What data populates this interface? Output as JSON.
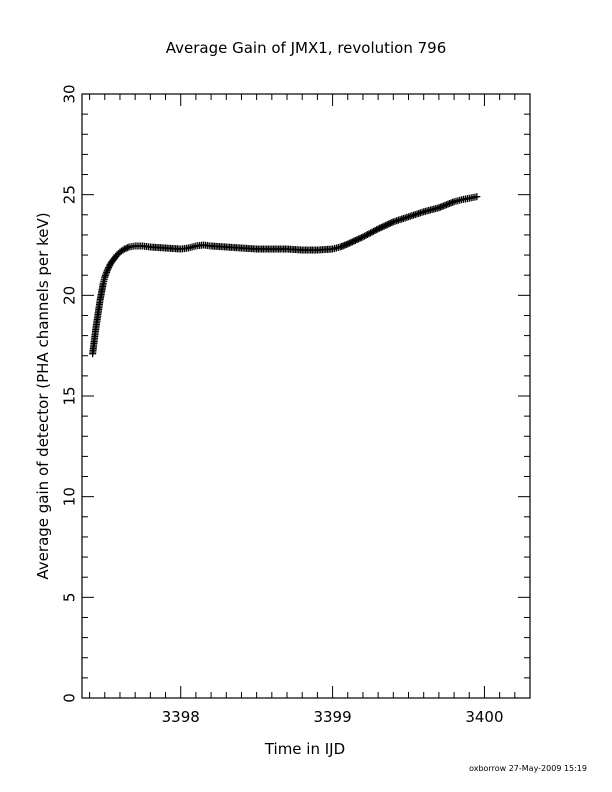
{
  "chart_data": {
    "type": "scatter",
    "title": "Average Gain of JMX1, revolution 796",
    "xlabel": "Time in IJD",
    "ylabel": "Average gain of detector (PHA channels per keV)",
    "xlim": [
      3397.35,
      3400.3
    ],
    "ylim": [
      0,
      30
    ],
    "x_ticks": [
      {
        "value": 3398,
        "label": "3398"
      },
      {
        "value": 3399,
        "label": "3399"
      },
      {
        "value": 3400,
        "label": "3400"
      }
    ],
    "y_ticks": [
      {
        "value": 0,
        "label": "0"
      },
      {
        "value": 5,
        "label": "5"
      },
      {
        "value": 10,
        "label": "10"
      },
      {
        "value": 15,
        "label": "15"
      },
      {
        "value": 20,
        "label": "20"
      },
      {
        "value": 25,
        "label": "25"
      },
      {
        "value": 30,
        "label": "30"
      }
    ],
    "grid": false,
    "marker": "plus",
    "color": "#000000",
    "series": [
      {
        "x": [
          3397.42,
          3397.43,
          3397.44,
          3397.45,
          3397.46,
          3397.47,
          3397.48,
          3397.49,
          3397.5,
          3397.52,
          3397.54,
          3397.56,
          3397.58,
          3397.6,
          3397.63,
          3397.66,
          3397.7,
          3397.75,
          3397.8,
          3397.9,
          3398.0,
          3398.05,
          3398.1,
          3398.15,
          3398.2,
          3398.3,
          3398.4,
          3398.5,
          3398.6,
          3398.7,
          3398.8,
          3398.9,
          3399.0,
          3399.05,
          3399.1,
          3399.2,
          3399.3,
          3399.4,
          3399.5,
          3399.6,
          3399.7,
          3399.75,
          3399.8,
          3399.85,
          3399.9,
          3399.95
        ],
        "y": [
          17.1,
          17.7,
          18.3,
          18.8,
          19.3,
          19.8,
          20.2,
          20.6,
          20.9,
          21.3,
          21.6,
          21.8,
          22.0,
          22.15,
          22.3,
          22.4,
          22.45,
          22.45,
          22.4,
          22.35,
          22.3,
          22.35,
          22.45,
          22.5,
          22.45,
          22.4,
          22.35,
          22.3,
          22.3,
          22.3,
          22.25,
          22.25,
          22.3,
          22.4,
          22.55,
          22.9,
          23.3,
          23.65,
          23.9,
          24.15,
          24.35,
          24.5,
          24.65,
          24.75,
          24.82,
          24.9
        ]
      }
    ]
  },
  "footer": {
    "credit": "oxborrow 27-May-2009 15:19"
  }
}
